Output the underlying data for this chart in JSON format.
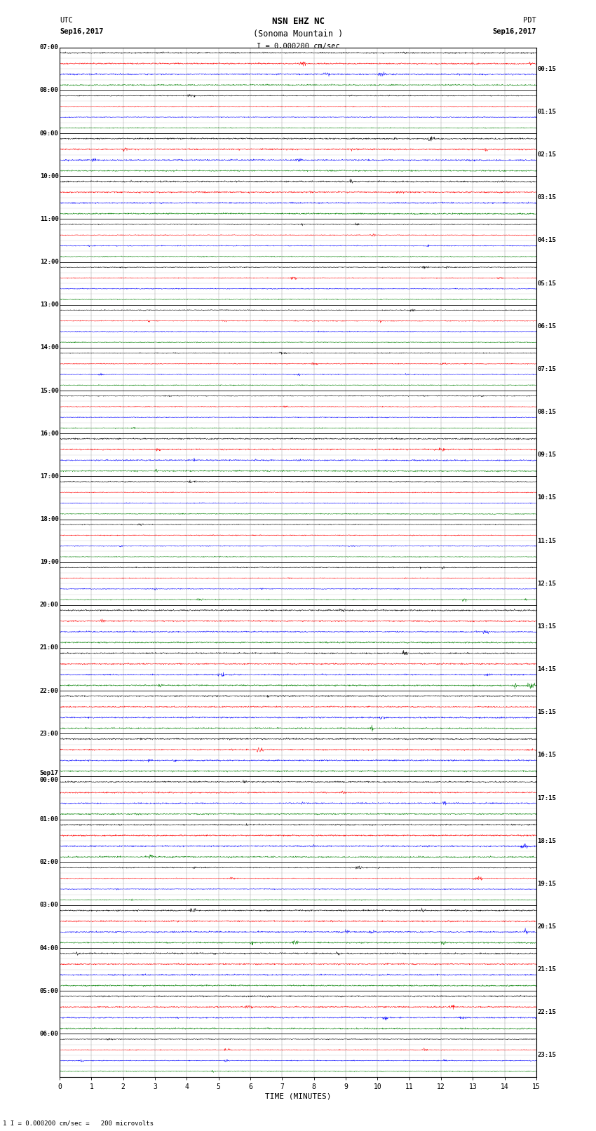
{
  "title_line1": "NSN EHZ NC",
  "title_line2": "(Sonoma Mountain )",
  "scale_label": "I = 0.000200 cm/sec",
  "left_header_line1": "UTC",
  "left_header_line2": "Sep16,2017",
  "right_header_line1": "PDT",
  "right_header_line2": "Sep16,2017",
  "bottom_label": "TIME (MINUTES)",
  "bottom_note": "1 I = 0.000200 cm/sec =   200 microvolts",
  "num_hours": 24,
  "traces_per_hour": 4,
  "x_min": 0,
  "x_max": 15,
  "x_ticks": [
    0,
    1,
    2,
    3,
    4,
    5,
    6,
    7,
    8,
    9,
    10,
    11,
    12,
    13,
    14,
    15
  ],
  "trace_colors": [
    "black",
    "red",
    "blue",
    "green"
  ],
  "background_color": "white",
  "fig_width": 8.5,
  "fig_height": 16.13,
  "left_time_labels": [
    "07:00",
    "08:00",
    "09:00",
    "10:00",
    "11:00",
    "12:00",
    "13:00",
    "14:00",
    "15:00",
    "16:00",
    "17:00",
    "18:00",
    "19:00",
    "20:00",
    "21:00",
    "22:00",
    "23:00",
    "Sep17\n00:00",
    "01:00",
    "02:00",
    "03:00",
    "04:00",
    "05:00",
    "06:00"
  ],
  "right_time_labels": [
    "00:15",
    "01:15",
    "02:15",
    "03:15",
    "04:15",
    "05:15",
    "06:15",
    "07:15",
    "08:15",
    "09:15",
    "10:15",
    "11:15",
    "12:15",
    "13:15",
    "14:15",
    "15:15",
    "16:15",
    "17:15",
    "18:15",
    "19:15",
    "20:15",
    "21:15",
    "22:15",
    "23:15"
  ],
  "grid_color": "#777777",
  "grid_linewidth": 0.3,
  "trace_linewidth": 0.35,
  "noise_base_amp": 0.018,
  "noise_high_amp": 0.06
}
